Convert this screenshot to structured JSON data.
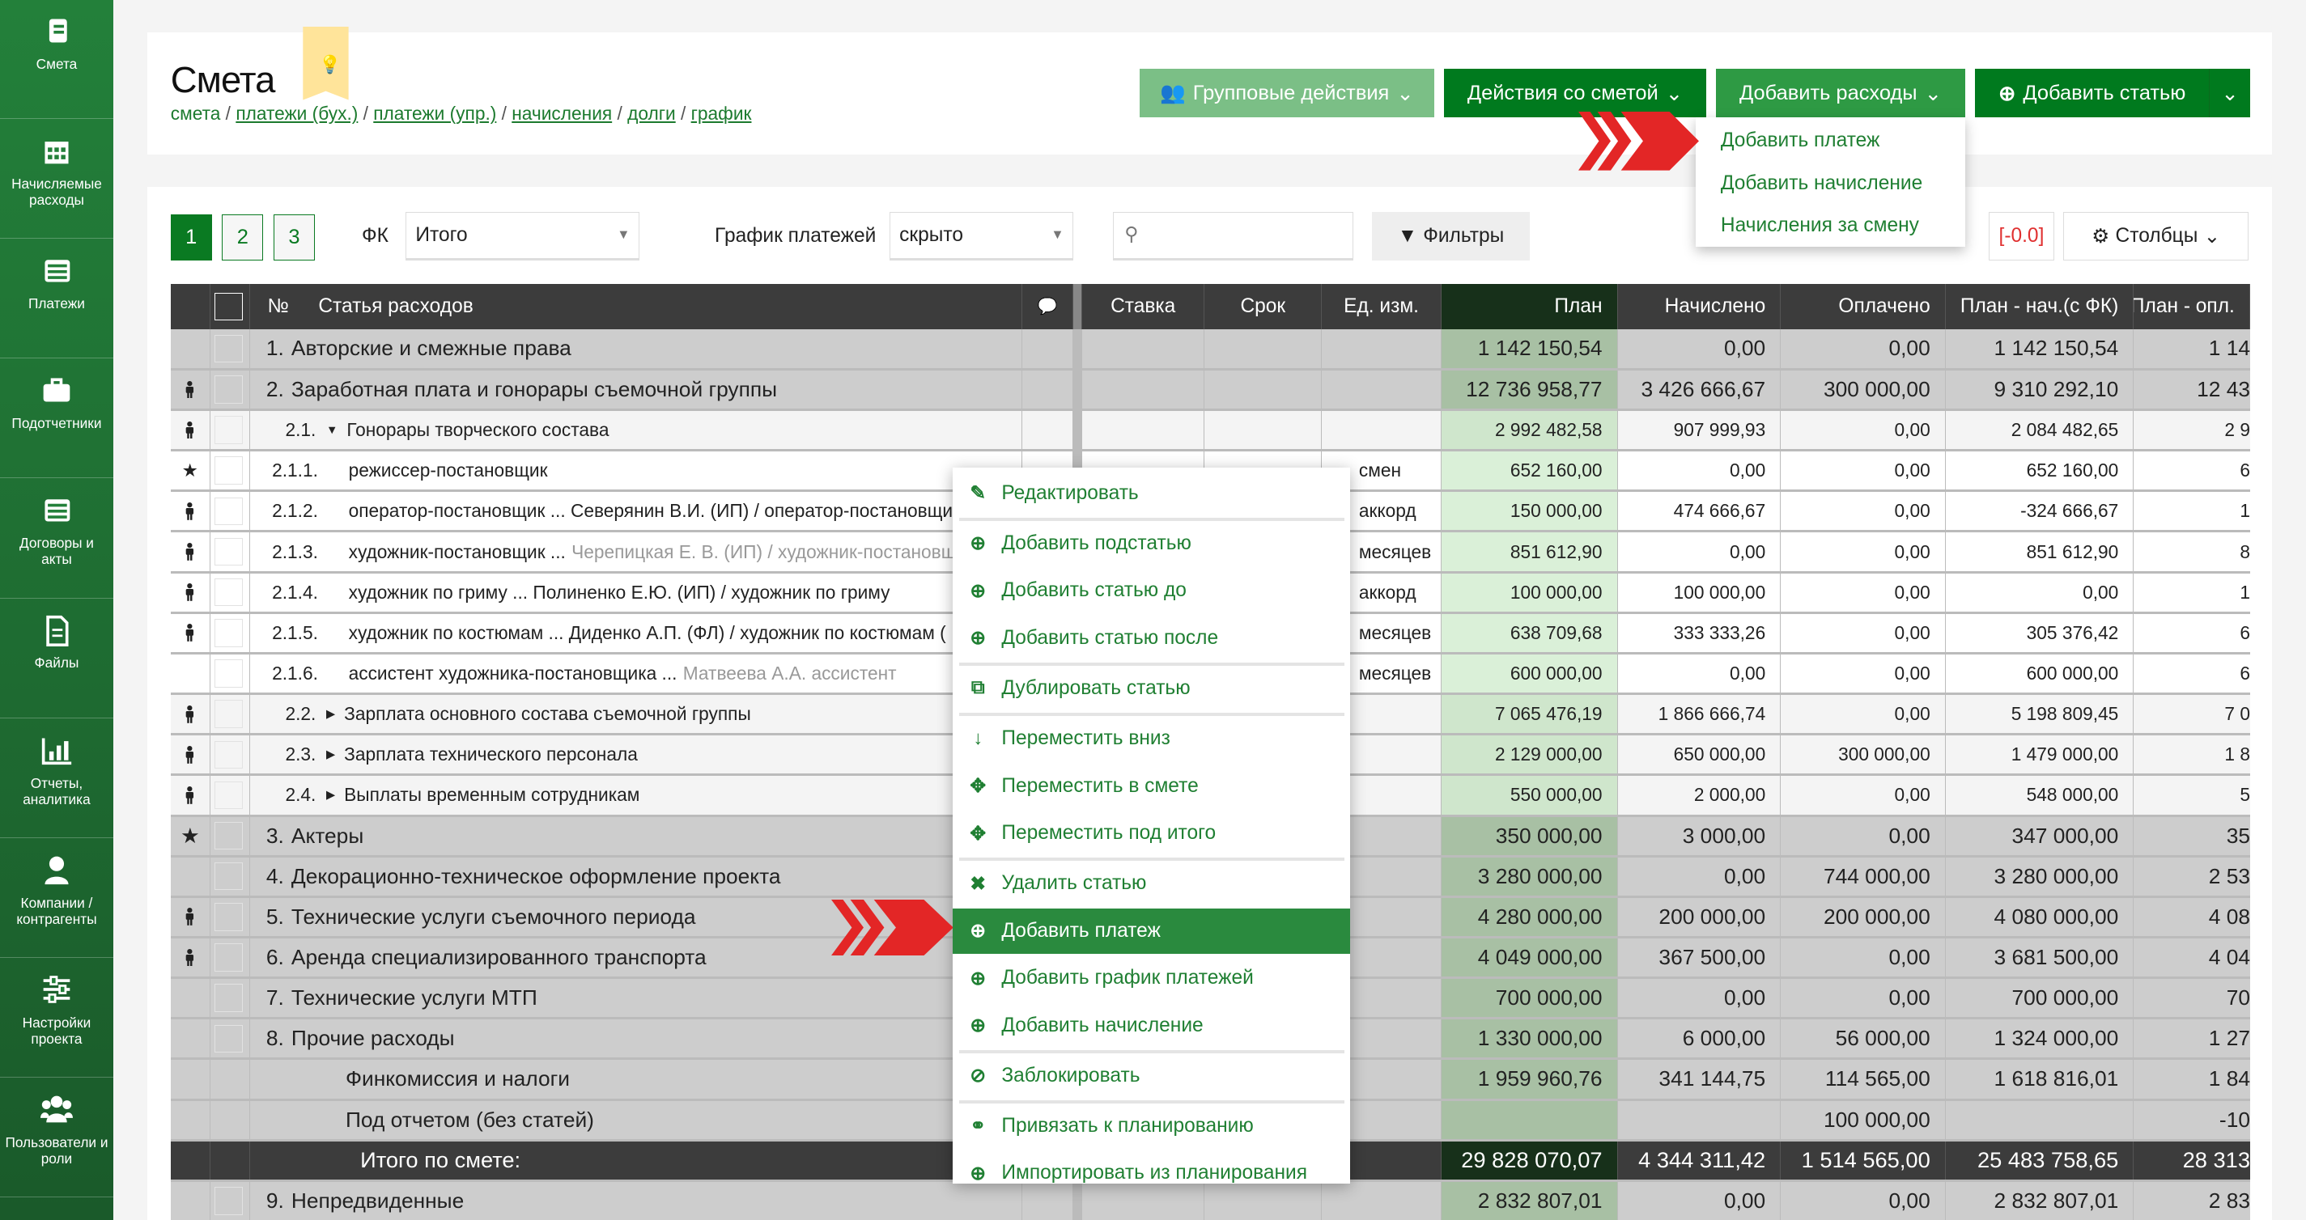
{
  "sidebar": {
    "items": [
      {
        "label": "Смета",
        "icon": "book-icon"
      },
      {
        "label": "Начисляемые расходы",
        "icon": "calendar-icon"
      },
      {
        "label": "Платежи",
        "icon": "list-icon"
      },
      {
        "label": "Подотчетники",
        "icon": "briefcase-icon"
      },
      {
        "label": "Договоры и акты",
        "icon": "list-icon"
      },
      {
        "label": "Файлы",
        "icon": "file-icon"
      },
      {
        "label": "Отчеты, аналитика",
        "icon": "bar-chart-icon"
      },
      {
        "label": "Компании / контрагенты",
        "icon": "user-icon"
      },
      {
        "label": "Настройки проекта",
        "icon": "sliders-icon"
      },
      {
        "label": "Пользователи и роли",
        "icon": "users-icon"
      }
    ]
  },
  "header": {
    "title": "Смета",
    "breadcrumb": [
      "смета",
      "платежи (бух.)",
      "платежи (упр.)",
      "начисления",
      "долги",
      "график"
    ],
    "buttons": {
      "group": "Групповые действия",
      "estimate": "Действия со сметой",
      "expenses": "Добавить расходы",
      "add_item": "Добавить статью"
    },
    "expenses_menu": [
      "Добавить платеж",
      "Добавить начисление",
      "Начисления за смену"
    ]
  },
  "toolbar": {
    "pages": [
      "1",
      "2",
      "3"
    ],
    "active_page": "1",
    "fk_label": "ФК",
    "fk_value": "Итого",
    "schedule_label": "График платежей",
    "schedule_value": "скрыто",
    "search_placeholder": "",
    "filters": "Фильтры",
    "delta": "[-0.0]",
    "columns": "Столбцы"
  },
  "colors": {
    "accent": "#0a7a22",
    "menu_highlight": "#2a8a3e",
    "arrow": "#e32626",
    "sidebar": "#23803a"
  },
  "table": {
    "headers": {
      "num": "№",
      "name": "Статья расходов",
      "rate": "Ставка",
      "term": "Срок",
      "unit": "Ед. изм.",
      "plan": "План",
      "accrued": "Начислено",
      "paid": "Оплачено",
      "plan_acc": "План - нач.(с ФК)",
      "plan_paid": "План - опл."
    },
    "rows": [
      {
        "level": "l1",
        "icon": "",
        "cb": true,
        "num": "1.",
        "name": "Авторские и смежные права",
        "extra": "",
        "unit": "",
        "plan": "1 142 150,54",
        "acc": "0,00",
        "paid": "0,00",
        "pa": "1 142 150,54",
        "pp": "1 14"
      },
      {
        "level": "l1",
        "icon": "person",
        "cb": true,
        "num": "2.",
        "name": "Заработная плата и гонорары съемочной группы",
        "extra": "",
        "unit": "",
        "plan": "12 736 958,77",
        "acc": "3 426 666,67",
        "paid": "300 000,00",
        "pa": "9 310 292,10",
        "pp": "12 43"
      },
      {
        "level": "l2",
        "icon": "person",
        "cb": true,
        "num": "2.1.",
        "caret": "▼",
        "name": "Гонорары творческого состава",
        "extra": "",
        "unit": "",
        "plan": "2 992 482,58",
        "acc": "907 999,93",
        "paid": "0,00",
        "pa": "2 084 482,65",
        "pp": "2 9"
      },
      {
        "level": "l3",
        "icon": "star",
        "cb": true,
        "num": "2.1.1.",
        "name": "режиссер-постановщик",
        "extra": "",
        "unit": "смен",
        "plan": "652 160,00",
        "acc": "0,00",
        "paid": "0,00",
        "pa": "652 160,00",
        "pp": "6"
      },
      {
        "level": "l3",
        "icon": "person",
        "cb": true,
        "num": "2.1.2.",
        "name": "оператор-постановщик ... Северянин В.И. (ИП) / оператор-постановщик",
        "extra": "",
        "unit": "аккорд",
        "plan": "150 000,00",
        "acc": "474 666,67",
        "paid": "0,00",
        "pa": "-324 666,67",
        "pp": "1"
      },
      {
        "level": "l3",
        "icon": "person",
        "cb": true,
        "num": "2.1.3.",
        "name": "художник-постановщик ...",
        "extra": "Черепицкая Е. В. (ИП) / художник-постановщ",
        "unit": "месяцев",
        "plan": "851 612,90",
        "acc": "0,00",
        "paid": "0,00",
        "pa": "851 612,90",
        "pp": "8"
      },
      {
        "level": "l3",
        "icon": "person",
        "cb": true,
        "num": "2.1.4.",
        "name": "художник по гриму ... Полиненко Е.Ю. (ИП) / художник по гриму",
        "extra": "",
        "unit": "аккорд",
        "plan": "100 000,00",
        "acc": "100 000,00",
        "paid": "0,00",
        "pa": "0,00",
        "pp": "1"
      },
      {
        "level": "l3",
        "icon": "person",
        "cb": true,
        "num": "2.1.5.",
        "name": "художник по костюмам ... Диденко А.П. (ФЛ) / художник по костюмам (",
        "extra": "",
        "unit": "месяцев",
        "plan": "638 709,68",
        "acc": "333 333,26",
        "paid": "0,00",
        "pa": "305 376,42",
        "pp": "6"
      },
      {
        "level": "l3",
        "icon": "",
        "cb": true,
        "num": "2.1.6.",
        "name": "ассистент художника-постановщика ...",
        "extra": "Матвеева А.А. ассистент",
        "unit": "месяцев",
        "plan": "600 000,00",
        "acc": "0,00",
        "paid": "0,00",
        "pa": "600 000,00",
        "pp": "6"
      },
      {
        "level": "l2",
        "icon": "person",
        "cb": true,
        "num": "2.2.",
        "caret": "▶",
        "name": "Зарплата основного состава съемочной группы",
        "extra": "",
        "unit": "",
        "plan": "7 065 476,19",
        "acc": "1 866 666,74",
        "paid": "0,00",
        "pa": "5 198 809,45",
        "pp": "7 0"
      },
      {
        "level": "l2",
        "icon": "person",
        "cb": true,
        "num": "2.3.",
        "caret": "▶",
        "name": "Зарплата технического персонала",
        "extra": "",
        "unit": "",
        "plan": "2 129 000,00",
        "acc": "650 000,00",
        "paid": "300 000,00",
        "pa": "1 479 000,00",
        "pp": "1 8"
      },
      {
        "level": "l2",
        "icon": "person",
        "cb": true,
        "num": "2.4.",
        "caret": "▶",
        "name": "Выплаты временным сотрудникам",
        "extra": "",
        "unit": "",
        "plan": "550 000,00",
        "acc": "2 000,00",
        "paid": "0,00",
        "pa": "548 000,00",
        "pp": "5"
      },
      {
        "level": "l1",
        "icon": "star",
        "cb": true,
        "num": "3.",
        "name": "Актеры",
        "extra": "",
        "unit": "",
        "plan": "350 000,00",
        "acc": "3 000,00",
        "paid": "0,00",
        "pa": "347 000,00",
        "pp": "35"
      },
      {
        "level": "l1",
        "icon": "",
        "cb": true,
        "num": "4.",
        "name": "Декорационно-техническое оформление проекта",
        "extra": "",
        "unit": "",
        "plan": "3 280 000,00",
        "acc": "0,00",
        "paid": "744 000,00",
        "pa": "3 280 000,00",
        "pp": "2 53"
      },
      {
        "level": "l1",
        "icon": "person",
        "cb": true,
        "num": "5.",
        "name": "Технические услуги съемочного периода",
        "extra": "",
        "unit": "",
        "plan": "4 280 000,00",
        "acc": "200 000,00",
        "paid": "200 000,00",
        "pa": "4 080 000,00",
        "pp": "4 08"
      },
      {
        "level": "l1",
        "icon": "person",
        "cb": true,
        "num": "6.",
        "name": "Аренда специализированного транспорта",
        "extra": "",
        "unit": "",
        "plan": "4 049 000,00",
        "acc": "367 500,00",
        "paid": "0,00",
        "pa": "3 681 500,00",
        "pp": "4 04"
      },
      {
        "level": "l1",
        "icon": "",
        "cb": true,
        "num": "7.",
        "name": "Технические услуги МТП",
        "extra": "",
        "unit": "",
        "plan": "700 000,00",
        "acc": "0,00",
        "paid": "0,00",
        "pa": "700 000,00",
        "pp": "70"
      },
      {
        "level": "l1",
        "icon": "",
        "cb": true,
        "num": "8.",
        "name": "Прочие расходы",
        "extra": "",
        "unit": "",
        "plan": "1 330 000,00",
        "acc": "6 000,00",
        "paid": "56 000,00",
        "pa": "1 324 000,00",
        "pp": "1 27"
      },
      {
        "level": "l1",
        "icon": "",
        "cb": false,
        "num": "",
        "name": "Финкомиссия и налоги",
        "extra": "",
        "unit": "",
        "plan": "1 959 960,76",
        "acc": "341 144,75",
        "paid": "114 565,00",
        "pa": "1 618 816,01",
        "pp": "1 84"
      },
      {
        "level": "l1",
        "icon": "",
        "cb": false,
        "num": "",
        "name": "Под отчетом (без статей)",
        "extra": "",
        "unit": "",
        "plan": "",
        "acc": "",
        "paid": "100 000,00",
        "pa": "",
        "pp": "-10"
      },
      {
        "level": "tot",
        "icon": "",
        "cb": false,
        "num": "",
        "name": "Итого по смете:",
        "extra": "",
        "unit": "",
        "plan": "29 828 070,07",
        "acc": "4 344 311,42",
        "paid": "1 514 565,00",
        "pa": "25 483 758,65",
        "pp": "28 313"
      },
      {
        "level": "l1",
        "icon": "",
        "cb": true,
        "num": "9.",
        "name": "Непредвиденные",
        "extra": "",
        "unit": "",
        "plan": "2 832 807,01",
        "acc": "0,00",
        "paid": "0,00",
        "pa": "2 832 807,01",
        "pp": "2 83"
      }
    ]
  },
  "context_menu": {
    "highlighted": "Добавить платеж",
    "groups": [
      [
        {
          "label": "Редактировать",
          "icon": "pencil-icon"
        }
      ],
      [
        {
          "label": "Добавить подстатью",
          "icon": "plus-circle-icon"
        },
        {
          "label": "Добавить статью до",
          "icon": "plus-circle-icon"
        },
        {
          "label": "Добавить статью после",
          "icon": "plus-circle-icon"
        }
      ],
      [
        {
          "label": "Дублировать статью",
          "icon": "copy-icon"
        }
      ],
      [
        {
          "label": "Переместить вниз",
          "icon": "arrow-down-icon"
        },
        {
          "label": "Переместить в смете",
          "icon": "move-icon"
        },
        {
          "label": "Переместить под итого",
          "icon": "move-icon"
        }
      ],
      [
        {
          "label": "Удалить статью",
          "icon": "x-icon"
        },
        {
          "label": "Добавить платеж",
          "icon": "plus-circle-icon"
        },
        {
          "label": "Добавить график платежей",
          "icon": "plus-circle-icon"
        },
        {
          "label": "Добавить начисление",
          "icon": "plus-circle-icon"
        }
      ],
      [
        {
          "label": "Заблокировать",
          "icon": "ban-icon"
        }
      ],
      [
        {
          "label": "Привязать к планированию",
          "icon": "link-icon"
        },
        {
          "label": "Импортировать из планирования",
          "icon": "plus-circle-icon"
        }
      ]
    ]
  }
}
